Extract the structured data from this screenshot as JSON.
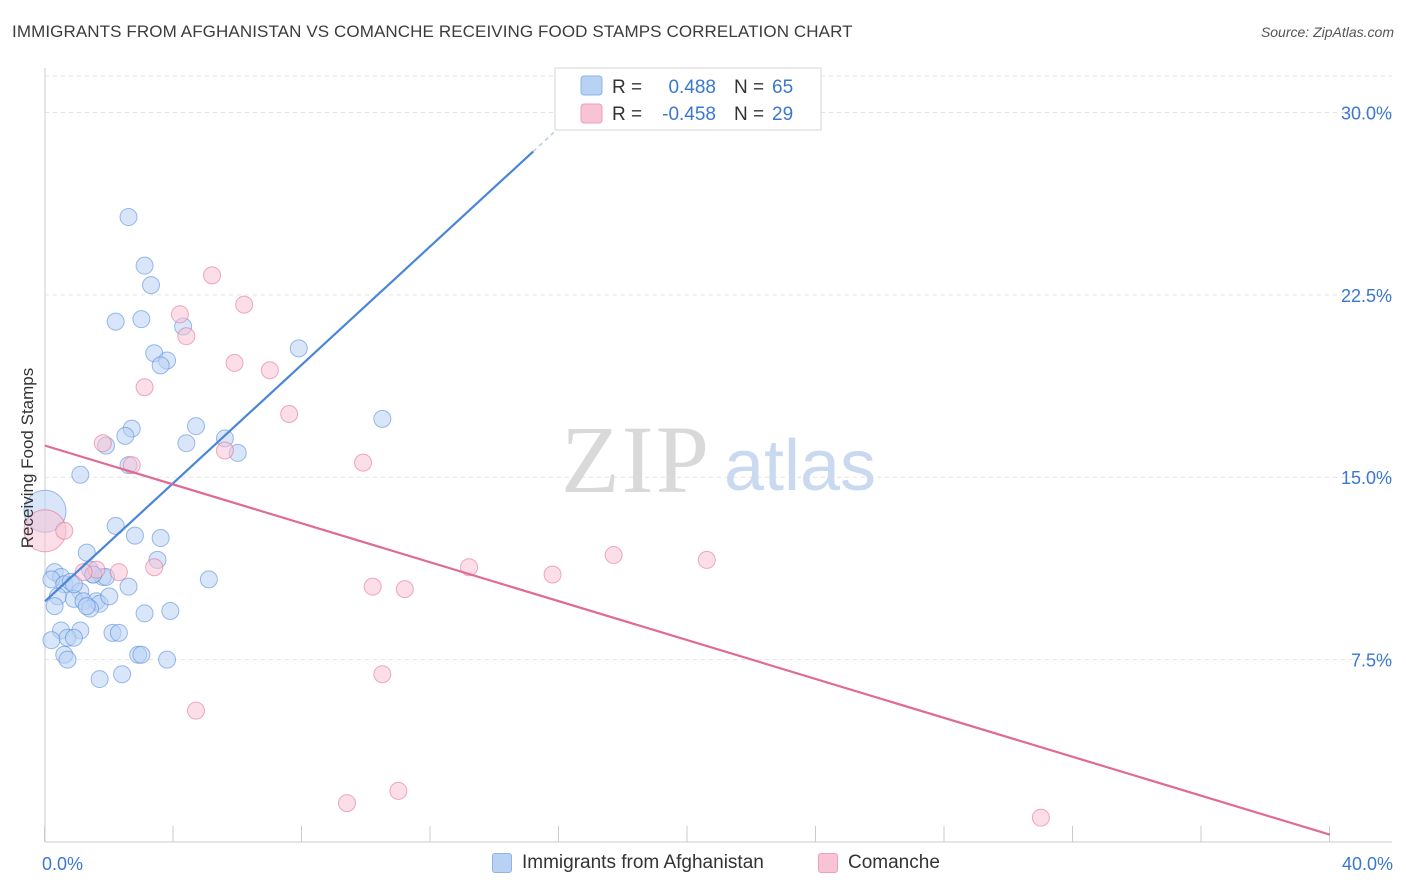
{
  "title": "IMMIGRANTS FROM AFGHANISTAN VS COMANCHE RECEIVING FOOD STAMPS CORRELATION CHART",
  "source": "Source: ZipAtlas.com",
  "watermark": {
    "zip": "ZIP",
    "atlas": "atlas"
  },
  "chart_data": {
    "type": "scatter",
    "title": "IMMIGRANTS FROM AFGHANISTAN VS COMANCHE RECEIVING FOOD STAMPS CORRELATION CHART",
    "xlabel": "",
    "ylabel": "Receiving Food Stamps",
    "xlim": [
      0,
      40
    ],
    "ylim": [
      0,
      31.5
    ],
    "x_tick_labels": [
      "0.0%",
      "40.0%"
    ],
    "y_ticks": [
      7.5,
      15.0,
      22.5,
      30.0
    ],
    "y_tick_labels": [
      "7.5%",
      "15.0%",
      "22.5%",
      "30.0%"
    ],
    "x_minor_ticks": [
      0,
      4,
      8,
      12,
      16,
      20,
      24,
      28,
      32,
      36,
      40
    ],
    "grid": true,
    "legend_stats": [
      {
        "r_label": "R =",
        "r_value": "0.488",
        "n_label": "N =",
        "n_value": "65"
      },
      {
        "r_label": "R =",
        "r_value": "-0.458",
        "n_label": "N =",
        "n_value": "29"
      }
    ],
    "series": [
      {
        "name": "Immigrants from Afghanistan",
        "color": "#4a86d8",
        "fill": "#b9d2f4",
        "trend": {
          "x": [
            0.0,
            15.2
          ],
          "y": [
            9.9,
            28.4
          ]
        },
        "trend_dashed": {
          "x": [
            15.2,
            17.0
          ],
          "y": [
            28.4,
            30.6
          ]
        },
        "points": [
          {
            "x": 0.0,
            "y": 13.6,
            "big": true
          },
          {
            "x": 2.6,
            "y": 25.7
          },
          {
            "x": 3.1,
            "y": 23.7
          },
          {
            "x": 3.3,
            "y": 22.9
          },
          {
            "x": 2.2,
            "y": 21.4
          },
          {
            "x": 3.0,
            "y": 21.5
          },
          {
            "x": 4.3,
            "y": 21.2
          },
          {
            "x": 3.4,
            "y": 20.1
          },
          {
            "x": 3.8,
            "y": 19.8
          },
          {
            "x": 7.9,
            "y": 20.3
          },
          {
            "x": 3.6,
            "y": 19.6
          },
          {
            "x": 10.5,
            "y": 17.4
          },
          {
            "x": 4.7,
            "y": 17.1
          },
          {
            "x": 2.7,
            "y": 17.0
          },
          {
            "x": 2.5,
            "y": 16.7
          },
          {
            "x": 5.6,
            "y": 16.6
          },
          {
            "x": 4.4,
            "y": 16.4
          },
          {
            "x": 1.9,
            "y": 16.3
          },
          {
            "x": 6.0,
            "y": 16.0
          },
          {
            "x": 2.6,
            "y": 15.5
          },
          {
            "x": 1.1,
            "y": 15.1
          },
          {
            "x": 2.2,
            "y": 13.0
          },
          {
            "x": 2.8,
            "y": 12.6
          },
          {
            "x": 3.6,
            "y": 12.5
          },
          {
            "x": 1.3,
            "y": 11.9
          },
          {
            "x": 3.5,
            "y": 11.6
          },
          {
            "x": 0.3,
            "y": 11.1
          },
          {
            "x": 1.4,
            "y": 11.2
          },
          {
            "x": 0.5,
            "y": 10.9
          },
          {
            "x": 0.2,
            "y": 10.8
          },
          {
            "x": 0.6,
            "y": 10.6
          },
          {
            "x": 0.8,
            "y": 10.7
          },
          {
            "x": 1.5,
            "y": 11.0
          },
          {
            "x": 1.8,
            "y": 10.9
          },
          {
            "x": 1.9,
            "y": 10.9
          },
          {
            "x": 5.1,
            "y": 10.8
          },
          {
            "x": 2.6,
            "y": 10.5
          },
          {
            "x": 1.1,
            "y": 10.3
          },
          {
            "x": 0.4,
            "y": 10.1
          },
          {
            "x": 0.9,
            "y": 10.0
          },
          {
            "x": 1.2,
            "y": 9.9
          },
          {
            "x": 1.6,
            "y": 9.9
          },
          {
            "x": 1.7,
            "y": 9.8
          },
          {
            "x": 1.4,
            "y": 9.6
          },
          {
            "x": 0.3,
            "y": 9.7
          },
          {
            "x": 3.1,
            "y": 9.4
          },
          {
            "x": 3.9,
            "y": 9.5
          },
          {
            "x": 1.3,
            "y": 9.7
          },
          {
            "x": 0.5,
            "y": 8.7
          },
          {
            "x": 1.1,
            "y": 8.7
          },
          {
            "x": 2.1,
            "y": 8.6
          },
          {
            "x": 2.3,
            "y": 8.6
          },
          {
            "x": 0.7,
            "y": 8.4
          },
          {
            "x": 0.2,
            "y": 8.3
          },
          {
            "x": 0.9,
            "y": 8.4
          },
          {
            "x": 0.6,
            "y": 7.7
          },
          {
            "x": 0.7,
            "y": 7.5
          },
          {
            "x": 2.9,
            "y": 7.7
          },
          {
            "x": 3.0,
            "y": 7.7
          },
          {
            "x": 3.8,
            "y": 7.5
          },
          {
            "x": 2.4,
            "y": 6.9
          },
          {
            "x": 1.7,
            "y": 6.7
          },
          {
            "x": 1.5,
            "y": 11.0
          },
          {
            "x": 0.9,
            "y": 10.6
          },
          {
            "x": 2.0,
            "y": 10.1
          }
        ]
      },
      {
        "name": "Comanche",
        "color": "#e06a94",
        "fill": "#f8c3d4",
        "trend": {
          "x": [
            0.0,
            40.0
          ],
          "y": [
            16.3,
            0.3
          ]
        },
        "points": [
          {
            "x": 0.0,
            "y": 12.8,
            "big": true
          },
          {
            "x": 5.2,
            "y": 23.3
          },
          {
            "x": 6.2,
            "y": 22.1
          },
          {
            "x": 4.2,
            "y": 21.7
          },
          {
            "x": 4.4,
            "y": 20.8
          },
          {
            "x": 5.9,
            "y": 19.7
          },
          {
            "x": 7.0,
            "y": 19.4
          },
          {
            "x": 3.1,
            "y": 18.7
          },
          {
            "x": 7.6,
            "y": 17.6
          },
          {
            "x": 1.8,
            "y": 16.4
          },
          {
            "x": 5.6,
            "y": 16.1
          },
          {
            "x": 9.9,
            "y": 15.6
          },
          {
            "x": 2.7,
            "y": 15.5
          },
          {
            "x": 0.6,
            "y": 12.8
          },
          {
            "x": 17.7,
            "y": 11.8
          },
          {
            "x": 20.6,
            "y": 11.6
          },
          {
            "x": 2.3,
            "y": 11.1
          },
          {
            "x": 3.4,
            "y": 11.3
          },
          {
            "x": 13.2,
            "y": 11.3
          },
          {
            "x": 15.8,
            "y": 11.0
          },
          {
            "x": 1.6,
            "y": 11.2
          },
          {
            "x": 10.2,
            "y": 10.5
          },
          {
            "x": 11.2,
            "y": 10.4
          },
          {
            "x": 10.5,
            "y": 6.9
          },
          {
            "x": 4.7,
            "y": 5.4
          },
          {
            "x": 11.0,
            "y": 2.1
          },
          {
            "x": 9.4,
            "y": 1.6
          },
          {
            "x": 31.0,
            "y": 1.0
          },
          {
            "x": 1.2,
            "y": 11.1
          }
        ]
      }
    ]
  }
}
